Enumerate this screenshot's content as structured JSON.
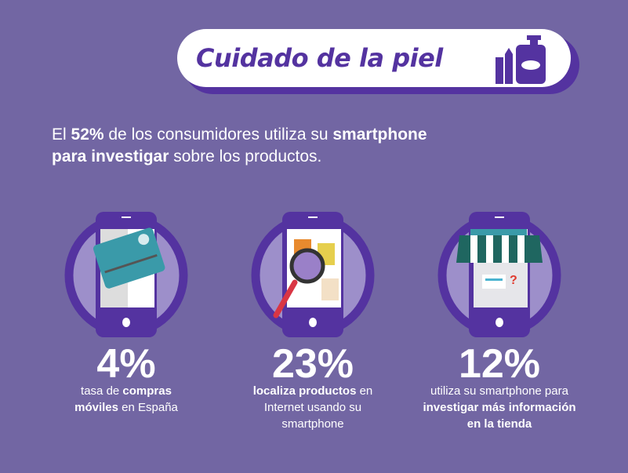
{
  "banner": {
    "title": "Cuidado de la piel",
    "icon": "cosmetics-icon"
  },
  "intro": {
    "pre": "El ",
    "pct": "52%",
    "mid": " de los consumidores utiliza su ",
    "bold1": "smartphone",
    "bold2": "para investigar",
    "post": " sobre los productos."
  },
  "stats": [
    {
      "value": "4%",
      "l1a": "tasa de ",
      "l1b": "compras",
      "l2a": "móviles",
      "l2b": " en España",
      "icon": "credit-card-icon"
    },
    {
      "value": "23%",
      "l1b": "localiza productos",
      "l1a": " en",
      "l2": "Internet usando su",
      "l3": "smartphone",
      "icon": "magnifier-icon"
    },
    {
      "value": "12%",
      "l1": "utiliza su smartphone para",
      "l2": "investigar más información",
      "l3": "en la tienda",
      "icon": "store-awning-icon"
    }
  ],
  "colors": {
    "bg": "#7266a3",
    "dark": "#5433a0",
    "light": "#9d8fca"
  }
}
